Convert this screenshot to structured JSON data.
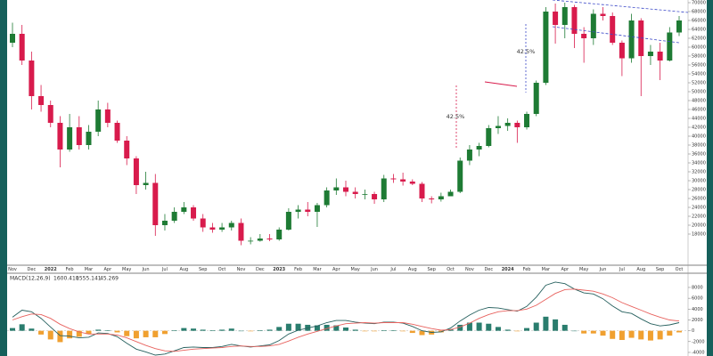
{
  "chart_data": [
    {
      "type": "candlestick",
      "categories": [
        "Nov",
        null,
        "Dec",
        null,
        "2022",
        null,
        "Feb",
        null,
        "Mar",
        null,
        "Apr",
        null,
        "May",
        null,
        "Jun",
        null,
        "Jul",
        null,
        "Aug",
        null,
        "Sep",
        null,
        "Oct",
        null,
        "Nov",
        null,
        "Dec",
        null,
        "2023",
        null,
        "Feb",
        null,
        "Mar",
        null,
        "Apr",
        null,
        "May",
        null,
        "Jun",
        null,
        "Jul",
        null,
        "Aug",
        null,
        "Sep",
        null,
        "Oct",
        null,
        "Nov",
        null,
        "Dec",
        null,
        "2024",
        null,
        "Feb",
        null,
        "Mar",
        null,
        "Apr",
        null,
        "May",
        null,
        "Jun",
        null,
        "Jul",
        null,
        "Aug",
        null,
        "Sep",
        null,
        "Oct"
      ],
      "open": [
        61000,
        63000,
        57000,
        49000,
        47000,
        43000,
        37000,
        42000,
        38000,
        41000,
        46000,
        43000,
        39000,
        35000,
        29000,
        29500,
        20000,
        21000,
        23000,
        24000,
        21500,
        19500,
        19000,
        19500,
        20500,
        16500,
        16500,
        17000,
        16800,
        19000,
        23000,
        23500,
        23000,
        24500,
        27800,
        28500,
        27500,
        27000,
        27000,
        25800,
        30500,
        30300,
        29800,
        29300,
        26000,
        25800,
        26500,
        27500,
        34500,
        37000,
        37800,
        41800,
        42300,
        43000,
        42000,
        45000,
        52000,
        68000,
        65000,
        69000,
        63000,
        62000,
        67500,
        67000,
        61000,
        57500,
        66000,
        58000,
        59000,
        57000,
        63300
      ],
      "high": [
        65500,
        65000,
        59000,
        51500,
        48000,
        44500,
        45000,
        44500,
        42500,
        48000,
        47500,
        43500,
        40000,
        35500,
        32000,
        31500,
        22500,
        24000,
        25200,
        24500,
        22500,
        20500,
        20500,
        21000,
        21500,
        17300,
        18000,
        18000,
        19500,
        23800,
        24500,
        25200,
        25000,
        28500,
        30500,
        30000,
        28500,
        28000,
        27500,
        31300,
        31500,
        31800,
        30300,
        29700,
        26500,
        27300,
        28000,
        35200,
        38000,
        38500,
        42500,
        44500,
        44000,
        43500,
        45500,
        52500,
        69000,
        69800,
        70000,
        69500,
        64500,
        68500,
        69000,
        67800,
        61500,
        67500,
        66500,
        60500,
        61000,
        64500,
        67000
      ],
      "low": [
        60000,
        56000,
        46000,
        45500,
        42000,
        33000,
        36500,
        37000,
        37000,
        40000,
        42000,
        38500,
        33500,
        27000,
        28000,
        17600,
        18800,
        20500,
        22500,
        21000,
        18500,
        18300,
        18500,
        18800,
        15500,
        15700,
        16300,
        16400,
        16500,
        18800,
        21500,
        22000,
        19600,
        24000,
        26800,
        26500,
        26000,
        25800,
        24800,
        25200,
        29500,
        28900,
        29000,
        25200,
        24900,
        25300,
        26500,
        27200,
        33500,
        35500,
        37500,
        40500,
        41200,
        38500,
        41500,
        44500,
        51500,
        60800,
        62000,
        59800,
        56500,
        60500,
        66000,
        60500,
        53500,
        56500,
        49000,
        56000,
        52600,
        56800,
        62500
      ],
      "close": [
        63000,
        57000,
        49000,
        47000,
        43000,
        37000,
        42000,
        38000,
        41000,
        46000,
        43000,
        39000,
        35000,
        29000,
        29500,
        20000,
        21000,
        23000,
        24000,
        21500,
        19500,
        19000,
        19500,
        20500,
        16500,
        16500,
        17000,
        16800,
        19000,
        23000,
        23500,
        23000,
        24500,
        27800,
        28500,
        27500,
        27000,
        27000,
        25800,
        30500,
        30300,
        29800,
        29300,
        26000,
        25800,
        26500,
        27500,
        34500,
        37000,
        37800,
        41800,
        42300,
        43000,
        42000,
        45000,
        52000,
        68000,
        65000,
        69000,
        63000,
        62000,
        67500,
        67000,
        61000,
        57500,
        66000,
        58000,
        59000,
        57000,
        63300,
        66000
      ],
      "up_color": "#1e7b34",
      "down_color": "#d81b4c",
      "ylim": [
        11000,
        70600
      ],
      "yticks": [
        18000,
        20000,
        22000,
        24000,
        26000,
        28000,
        30000,
        32000,
        34000,
        36000,
        38000,
        40000,
        42000,
        44000,
        46000,
        48000,
        50000,
        52000,
        54000,
        56000,
        58000,
        60000,
        62000,
        64000,
        66000,
        68000,
        70000
      ],
      "annotations": [
        "42.5%",
        "42.5%"
      ]
    },
    {
      "type": "macd",
      "title": "MACD(12,26,9)",
      "legend_values": [
        {
          "label": "1600.410",
          "color": "#26605e"
        },
        {
          "label": "1555.141",
          "color": "#e8625e"
        },
        {
          "label": "45.269",
          "color": "#2a7d6e"
        }
      ],
      "series": [
        {
          "color": "#26605e",
          "values": [
            2500,
            3800,
            3500,
            2300,
            700,
            -900,
            -1000,
            -1300,
            -1200,
            -400,
            -500,
            -1100,
            -2300,
            -3400,
            -3900,
            -4500,
            -4300,
            -3700,
            -3100,
            -3000,
            -3100,
            -3100,
            -2900,
            -2500,
            -2800,
            -3000,
            -2800,
            -2600,
            -1800,
            -600,
            100,
            500,
            900,
            1500,
            1900,
            1900,
            1600,
            1400,
            1300,
            1600,
            1600,
            1400,
            800,
            0,
            -300,
            -200,
            500,
            1800,
            2900,
            3800,
            4300,
            4200,
            3900,
            3600,
            4500,
            6200,
            8400,
            9000,
            8700,
            7700,
            7000,
            6800,
            5900,
            4600,
            3500,
            3200,
            2200,
            1300,
            900,
            1100,
            1500
          ]
        },
        {
          "color": "#e8625e",
          "values": [
            2000,
            2600,
            3100,
            3000,
            2300,
            1200,
            400,
            -200,
            -600,
            -600,
            -600,
            -800,
            -1300,
            -2000,
            -2700,
            -3300,
            -3700,
            -3800,
            -3600,
            -3400,
            -3300,
            -3200,
            -3100,
            -2900,
            -2800,
            -2900,
            -2900,
            -2800,
            -2500,
            -1900,
            -1200,
            -600,
            -100,
            400,
            900,
            1300,
            1400,
            1500,
            1400,
            1500,
            1500,
            1500,
            1200,
            800,
            400,
            100,
            200,
            700,
            1400,
            2300,
            3000,
            3500,
            3700,
            3700,
            4000,
            4700,
            5800,
            6900,
            7600,
            7700,
            7500,
            7300,
            6800,
            6100,
            5200,
            4500,
            3800,
            3100,
            2500,
            2000,
            1800
          ]
        }
      ],
      "histogram": {
        "positive_color": "#2a7d6e",
        "negative_color": "#f0a030",
        "values": [
          500,
          1200,
          400,
          -700,
          -1600,
          -2100,
          -1400,
          -1100,
          -600,
          200,
          100,
          -300,
          -1000,
          -1400,
          -1200,
          -1200,
          -600,
          100,
          500,
          400,
          200,
          100,
          200,
          400,
          0,
          -100,
          100,
          200,
          700,
          1300,
          1300,
          1100,
          1000,
          1100,
          1000,
          600,
          200,
          -100,
          -100,
          100,
          100,
          -100,
          -400,
          -800,
          -700,
          -300,
          300,
          1100,
          1500,
          1500,
          1300,
          700,
          200,
          -100,
          500,
          1500,
          2600,
          2100,
          1100,
          0,
          -500,
          -500,
          -900,
          -1500,
          -1700,
          -1300,
          -1600,
          -1800,
          -1600,
          -900,
          -300
        ]
      },
      "ylim": [
        -4660,
        10460
      ],
      "yticks": [
        -4000,
        -2000,
        0,
        2000,
        4000,
        6000,
        8000
      ]
    }
  ]
}
